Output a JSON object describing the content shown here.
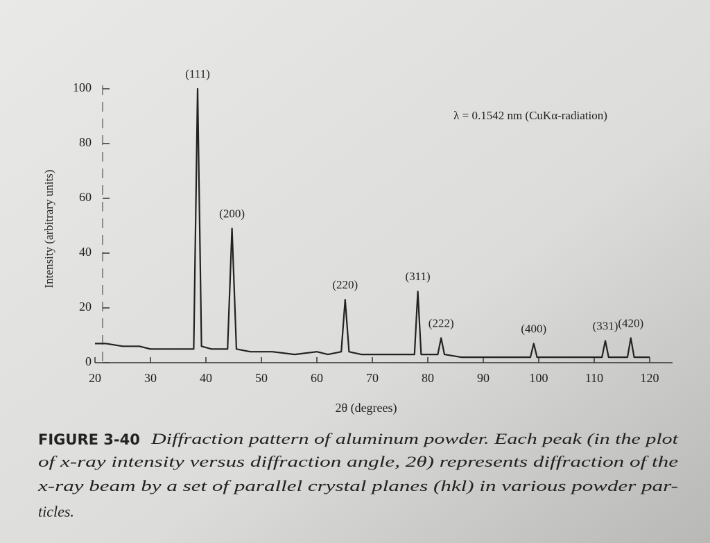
{
  "chart_data": {
    "type": "line",
    "xlabel": "2θ (degrees)",
    "ylabel": "Intensity (arbitrary units)",
    "note": "λ = 0.1542 nm (CuKα-radiation)",
    "color": "#222222",
    "xlim": [
      20,
      120
    ],
    "ylim": [
      0,
      100
    ],
    "xticks": [
      20,
      30,
      40,
      50,
      60,
      70,
      80,
      90,
      100,
      110,
      120
    ],
    "yticks": [
      0,
      20,
      40,
      60,
      80,
      100
    ],
    "x": [
      20,
      22,
      25,
      28,
      30,
      33,
      36,
      37.8,
      38.5,
      39.2,
      41,
      43.9,
      44.7,
      45.5,
      48,
      52,
      56,
      60,
      62,
      64.4,
      65.1,
      65.8,
      68,
      72,
      76,
      77.6,
      78.2,
      78.8,
      81.8,
      82.4,
      83,
      86,
      90,
      95,
      98.5,
      99.1,
      99.7,
      103,
      107,
      111.4,
      112,
      112.6,
      114,
      116,
      116.6,
      117.2,
      120
    ],
    "values": [
      7,
      7,
      6,
      6,
      5,
      5,
      5,
      5,
      100,
      6,
      5,
      5,
      49,
      5,
      4,
      4,
      3,
      4,
      3,
      4,
      23,
      4,
      3,
      3,
      3,
      3,
      26,
      3,
      3,
      9,
      3,
      2,
      2,
      2,
      2,
      7,
      2,
      2,
      2,
      2,
      8,
      2,
      2,
      2,
      9,
      2,
      2
    ],
    "annotations": [
      {
        "text": "(111)",
        "x": 38.5
      },
      {
        "text": "(200)",
        "x": 44.7
      },
      {
        "text": "(220)",
        "x": 65.1
      },
      {
        "text": "(311)",
        "x": 78.2
      },
      {
        "text": "(222)",
        "x": 82.4
      },
      {
        "text": "(400)",
        "x": 99.1
      },
      {
        "text": "(331)",
        "x": 112
      },
      {
        "text": "(420)",
        "x": 116.6
      }
    ]
  },
  "caption": {
    "label": "FIGURE 3-40",
    "lines": [
      "Diffraction pattern of aluminum powder. Each peak (in the plot",
      "of x-ray intensity versus diffraction angle, 2θ) represents diffraction of the",
      "x-ray beam by a set of parallel crystal planes (hkl) in various powder par-",
      "ticles."
    ]
  }
}
